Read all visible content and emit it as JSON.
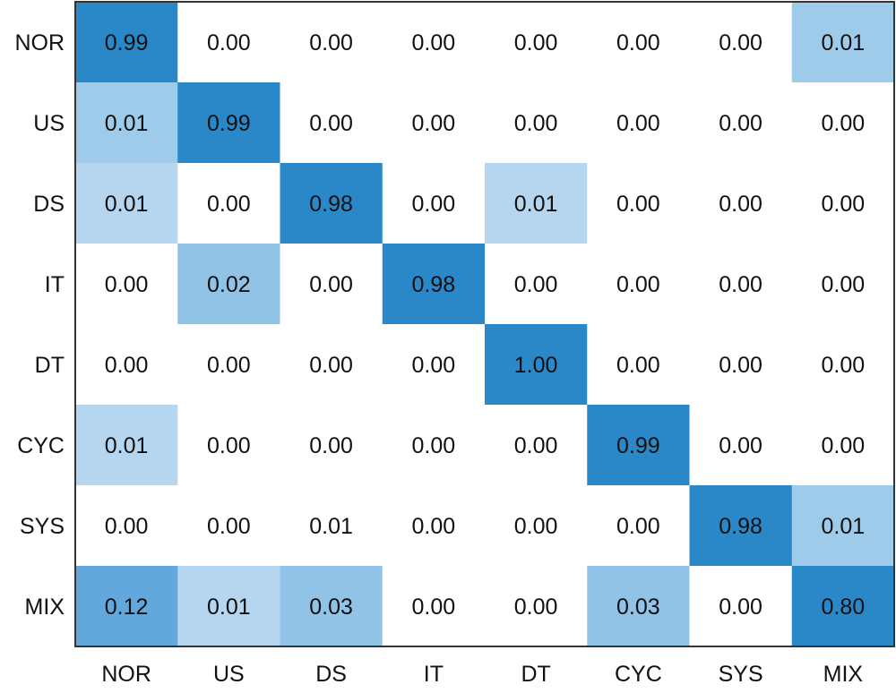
{
  "chart_data": {
    "type": "heatmap",
    "title": "",
    "xlabel": "",
    "ylabel": "",
    "row_labels": [
      "NOR",
      "US",
      "DS",
      "IT",
      "DT",
      "CYC",
      "SYS",
      "MIX"
    ],
    "col_labels": [
      "NOR",
      "US",
      "DS",
      "IT",
      "DT",
      "CYC",
      "SYS",
      "MIX"
    ],
    "values": [
      [
        "0.99",
        "0.00",
        "0.00",
        "0.00",
        "0.00",
        "0.00",
        "0.00",
        "0.01"
      ],
      [
        "0.01",
        "0.99",
        "0.00",
        "0.00",
        "0.00",
        "0.00",
        "0.00",
        "0.00"
      ],
      [
        "0.01",
        "0.00",
        "0.98",
        "0.00",
        "0.01",
        "0.00",
        "0.00",
        "0.00"
      ],
      [
        "0.00",
        "0.02",
        "0.00",
        "0.98",
        "0.00",
        "0.00",
        "0.00",
        "0.00"
      ],
      [
        "0.00",
        "0.00",
        "0.00",
        "0.00",
        "1.00",
        "0.00",
        "0.00",
        "0.00"
      ],
      [
        "0.01",
        "0.00",
        "0.00",
        "0.00",
        "0.00",
        "0.99",
        "0.00",
        "0.00"
      ],
      [
        "0.00",
        "0.00",
        "0.01",
        "0.00",
        "0.00",
        "0.00",
        "0.98",
        "0.01"
      ],
      [
        "0.12",
        "0.01",
        "0.03",
        "0.00",
        "0.00",
        "0.03",
        "0.00",
        "0.80"
      ]
    ],
    "cell_colors": [
      [
        "#2a87c8",
        "#ffffff",
        "#ffffff",
        "#ffffff",
        "#ffffff",
        "#ffffff",
        "#ffffff",
        "#9fcbea"
      ],
      [
        "#9fcbea",
        "#2a87c8",
        "#ffffff",
        "#ffffff",
        "#ffffff",
        "#ffffff",
        "#ffffff",
        "#ffffff"
      ],
      [
        "#b5d6ee",
        "#ffffff",
        "#2a87c8",
        "#ffffff",
        "#b5d6ee",
        "#ffffff",
        "#ffffff",
        "#ffffff"
      ],
      [
        "#ffffff",
        "#90c3e6",
        "#ffffff",
        "#2a87c8",
        "#ffffff",
        "#ffffff",
        "#ffffff",
        "#ffffff"
      ],
      [
        "#ffffff",
        "#ffffff",
        "#ffffff",
        "#ffffff",
        "#2a87c8",
        "#ffffff",
        "#ffffff",
        "#ffffff"
      ],
      [
        "#b5d6ee",
        "#ffffff",
        "#ffffff",
        "#ffffff",
        "#ffffff",
        "#2a87c8",
        "#ffffff",
        "#ffffff"
      ],
      [
        "#ffffff",
        "#ffffff",
        "#ffffff",
        "#ffffff",
        "#ffffff",
        "#ffffff",
        "#2a87c8",
        "#9fcbea"
      ],
      [
        "#62a8dc",
        "#b5d6ee",
        "#90c3e6",
        "#ffffff",
        "#ffffff",
        "#90c3e6",
        "#ffffff",
        "#2a87c8"
      ]
    ],
    "grid": false,
    "legend": "none"
  }
}
